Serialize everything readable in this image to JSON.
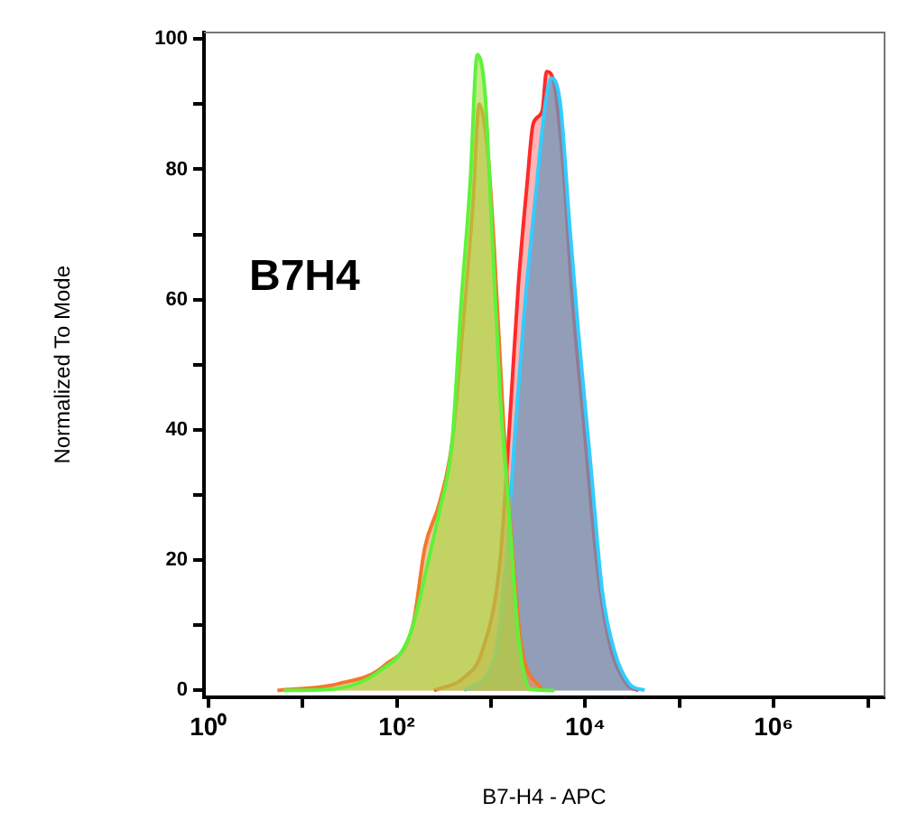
{
  "chart_data": {
    "type": "area",
    "xlabel": "B7-H4 - APC",
    "ylabel": "Normalized To Mode",
    "annotations": [
      "B7H4"
    ],
    "log": "x",
    "xlim": [
      0.9,
      15000000
    ],
    "xticks": [
      {
        "value": 1,
        "label": "10⁰"
      },
      {
        "value": 10,
        "label": null
      },
      {
        "value": 100,
        "label": "10²"
      },
      {
        "value": 1000,
        "label": null
      },
      {
        "value": 10000,
        "label": "10⁴"
      },
      {
        "value": 100000,
        "label": null
      },
      {
        "value": 1000000,
        "label": "10⁶"
      },
      {
        "value": 10000000,
        "label": null
      }
    ],
    "ylim": [
      -1,
      101
    ],
    "yticks": [
      0,
      {
        "value": 10,
        "label": null
      },
      20,
      {
        "value": 30,
        "label": null
      },
      40,
      {
        "value": 50,
        "label": null
      },
      60,
      {
        "value": 70,
        "label": null
      },
      80,
      {
        "value": 90,
        "label": null
      },
      100
    ],
    "grid": false,
    "legend": false,
    "series": [
      {
        "color": "#ff2a2a",
        "x": [
          248,
          518,
          804,
          1250,
          1560,
          1945,
          2423,
          2805,
          3500,
          3882,
          4699,
          5861,
          7300,
          9795,
          13150,
          17630,
          27400,
          36800
        ],
        "values": [
          0,
          2,
          6,
          20,
          40,
          62,
          78,
          87,
          89,
          95,
          93,
          80,
          60,
          40,
          20,
          8,
          1,
          0
        ]
      },
      {
        "color": "#33ccff",
        "x": [
          518,
          1080,
          1449,
          1806,
          2250,
          3020,
          3767,
          4365,
          5445,
          6780,
          8450,
          11350,
          15240,
          20420,
          29500,
          42650
        ],
        "values": [
          0,
          5,
          20,
          40,
          58,
          77,
          90,
          94,
          90,
          72,
          55,
          35,
          15,
          6,
          1,
          0
        ]
      },
      {
        "color": "#f4782a",
        "x": [
          5.4,
          23.6,
          76.5,
          148,
          199,
          287,
          386,
          518,
          645,
          748,
          931,
          1080,
          1346,
          1679,
          2094,
          3500
        ],
        "values": [
          0,
          1,
          4,
          10,
          22,
          29,
          38,
          58,
          75,
          90,
          82,
          68,
          42,
          22,
          7,
          0
        ]
      },
      {
        "color": "#5ef23a",
        "x": [
          6.3,
          20.4,
          66,
          138,
          214,
          287,
          386,
          481,
          600,
          715,
          865,
          1003,
          1250,
          1560,
          1945,
          2608,
          4699
        ],
        "values": [
          0,
          0.2,
          3,
          8.5,
          19.6,
          27.9,
          38,
          59.3,
          77.7,
          97.6,
          91.6,
          73.1,
          45.4,
          27,
          8.5,
          0.2,
          0
        ]
      }
    ]
  }
}
